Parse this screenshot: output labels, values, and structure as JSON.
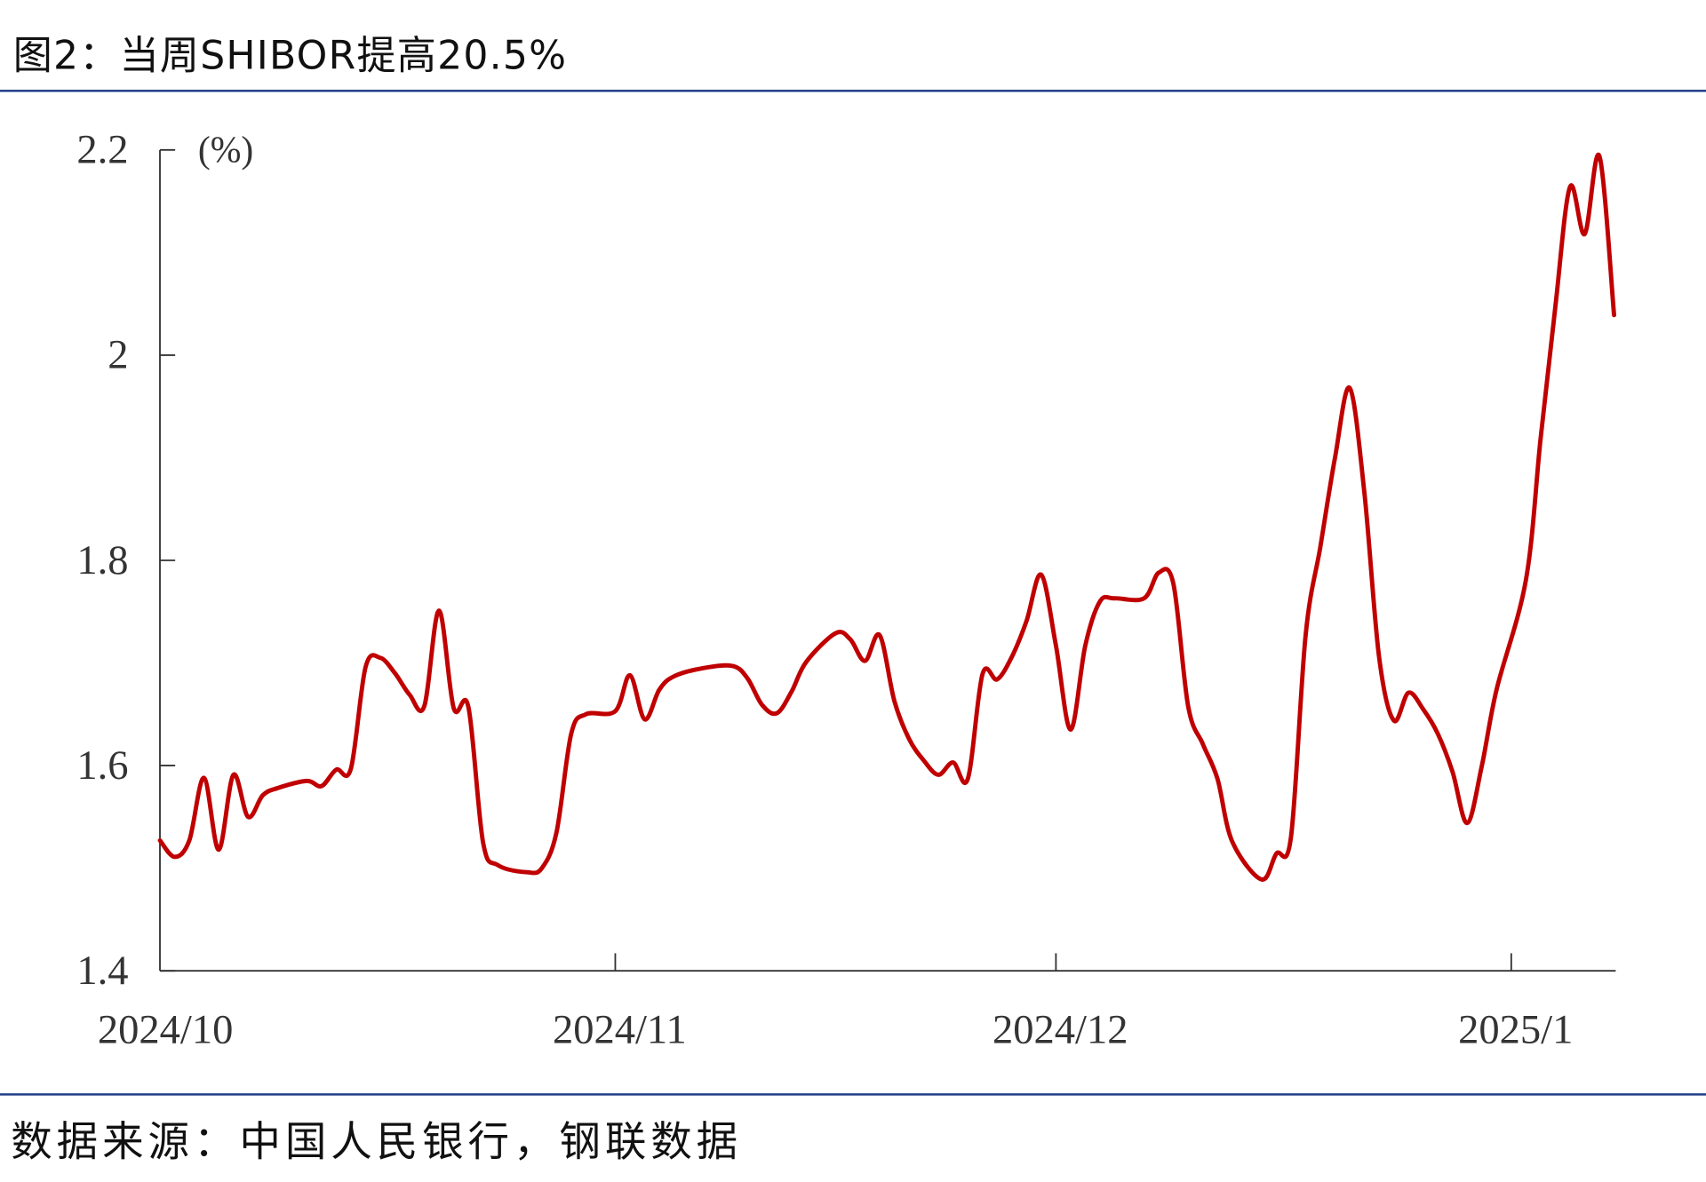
{
  "title": "图2：当周SHIBOR提高20.5%",
  "source": "数据来源：中国人民银行，钢联数据",
  "colors": {
    "line": "#C00000",
    "rule": "#1F3C88",
    "axis": "#333333"
  },
  "chart_data": {
    "type": "line",
    "title": "图2：当周SHIBOR提高20.5%",
    "ylabel": "(%)",
    "xlabel": "",
    "ylim": [
      1.4,
      2.2
    ],
    "yticks": [
      "2.2",
      "2",
      "1.8",
      "1.6",
      "1.4"
    ],
    "xticks": [
      "2024/10",
      "2024/11",
      "2024/12",
      "2025/1"
    ],
    "xtick_dates": [
      "2024-10-01",
      "2024-11-01",
      "2024-12-01",
      "2025-01-01"
    ],
    "xlim": [
      "2024-10-01",
      "2025-01-08"
    ],
    "grid": false,
    "legend": "none",
    "series": [
      {
        "color": "#C00000",
        "points": [
          [
            "2024-10-01",
            1.527
          ],
          [
            "2024-10-02",
            1.511
          ],
          [
            "2024-10-03",
            1.527
          ],
          [
            "2024-10-04",
            1.588
          ],
          [
            "2024-10-05",
            1.518
          ],
          [
            "2024-10-06",
            1.591
          ],
          [
            "2024-10-07",
            1.55
          ],
          [
            "2024-10-08",
            1.571
          ],
          [
            "2024-10-09",
            1.578
          ],
          [
            "2024-10-11",
            1.585
          ],
          [
            "2024-10-12",
            1.58
          ],
          [
            "2024-10-13",
            1.596
          ],
          [
            "2024-10-14",
            1.597
          ],
          [
            "2024-10-15",
            1.696
          ],
          [
            "2024-10-16",
            1.705
          ],
          [
            "2024-10-17",
            1.69
          ],
          [
            "2024-10-18",
            1.669
          ],
          [
            "2024-10-19",
            1.658
          ],
          [
            "2024-10-20",
            1.751
          ],
          [
            "2024-10-21",
            1.656
          ],
          [
            "2024-10-22",
            1.657
          ],
          [
            "2024-10-23",
            1.525
          ],
          [
            "2024-10-24",
            1.503
          ],
          [
            "2024-10-26",
            1.496
          ],
          [
            "2024-10-27",
            1.5
          ],
          [
            "2024-10-28",
            1.535
          ],
          [
            "2024-10-29",
            1.631
          ],
          [
            "2024-10-30",
            1.65
          ],
          [
            "2024-11-01",
            1.653
          ],
          [
            "2024-11-02",
            1.688
          ],
          [
            "2024-11-03",
            1.645
          ],
          [
            "2024-11-04",
            1.674
          ],
          [
            "2024-11-05",
            1.687
          ],
          [
            "2024-11-07",
            1.695
          ],
          [
            "2024-11-09",
            1.697
          ],
          [
            "2024-11-10",
            1.685
          ],
          [
            "2024-11-11",
            1.659
          ],
          [
            "2024-11-12",
            1.651
          ],
          [
            "2024-11-13",
            1.672
          ],
          [
            "2024-11-14",
            1.701
          ],
          [
            "2024-11-16",
            1.729
          ],
          [
            "2024-11-17",
            1.723
          ],
          [
            "2024-11-18",
            1.702
          ],
          [
            "2024-11-19",
            1.727
          ],
          [
            "2024-11-20",
            1.663
          ],
          [
            "2024-11-21",
            1.626
          ],
          [
            "2024-11-22",
            1.605
          ],
          [
            "2024-11-23",
            1.591
          ],
          [
            "2024-11-24",
            1.603
          ],
          [
            "2024-11-25",
            1.587
          ],
          [
            "2024-11-26",
            1.689
          ],
          [
            "2024-11-27",
            1.684
          ],
          [
            "2024-11-28",
            1.706
          ],
          [
            "2024-11-29",
            1.741
          ],
          [
            "2024-11-30",
            1.786
          ],
          [
            "2024-12-01",
            1.717
          ],
          [
            "2024-12-02",
            1.635
          ],
          [
            "2024-12-03",
            1.717
          ],
          [
            "2024-12-04",
            1.76
          ],
          [
            "2024-12-05",
            1.763
          ],
          [
            "2024-12-07",
            1.763
          ],
          [
            "2024-12-08",
            1.788
          ],
          [
            "2024-12-09",
            1.777
          ],
          [
            "2024-12-10",
            1.658
          ],
          [
            "2024-12-11",
            1.621
          ],
          [
            "2024-12-12",
            1.587
          ],
          [
            "2024-12-13",
            1.526
          ],
          [
            "2024-12-15",
            1.489
          ],
          [
            "2024-12-16",
            1.514
          ],
          [
            "2024-12-17",
            1.53
          ],
          [
            "2024-12-18",
            1.727
          ],
          [
            "2024-12-19",
            1.813
          ],
          [
            "2024-12-20",
            1.9
          ],
          [
            "2024-12-21",
            1.968
          ],
          [
            "2024-12-22",
            1.866
          ],
          [
            "2024-12-23",
            1.706
          ],
          [
            "2024-12-24",
            1.644
          ],
          [
            "2024-12-25",
            1.671
          ],
          [
            "2024-12-26",
            1.655
          ],
          [
            "2024-12-27",
            1.631
          ],
          [
            "2024-12-28",
            1.594
          ],
          [
            "2024-12-29",
            1.544
          ],
          [
            "2024-12-30",
            1.6
          ],
          [
            "2024-12-31",
            1.674
          ],
          [
            "2025-01-02",
            1.781
          ],
          [
            "2025-01-03",
            1.919
          ],
          [
            "2025-01-04",
            2.047
          ],
          [
            "2025-01-05",
            2.164
          ],
          [
            "2025-01-06",
            2.118
          ],
          [
            "2025-01-07",
            2.194
          ],
          [
            "2025-01-08",
            2.039
          ]
        ]
      }
    ]
  }
}
